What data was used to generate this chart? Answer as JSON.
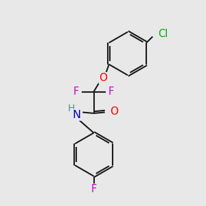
{
  "bg_color": "#e8e8e8",
  "bond_color": "#1a1a1a",
  "bond_width": 1.5,
  "dbo": 0.07,
  "atom_colors": {
    "O": "#ff0000",
    "N": "#0000cd",
    "F": "#cc00cc",
    "Cl": "#00aa00",
    "H": "#4a9090"
  },
  "font_size": 10.5
}
